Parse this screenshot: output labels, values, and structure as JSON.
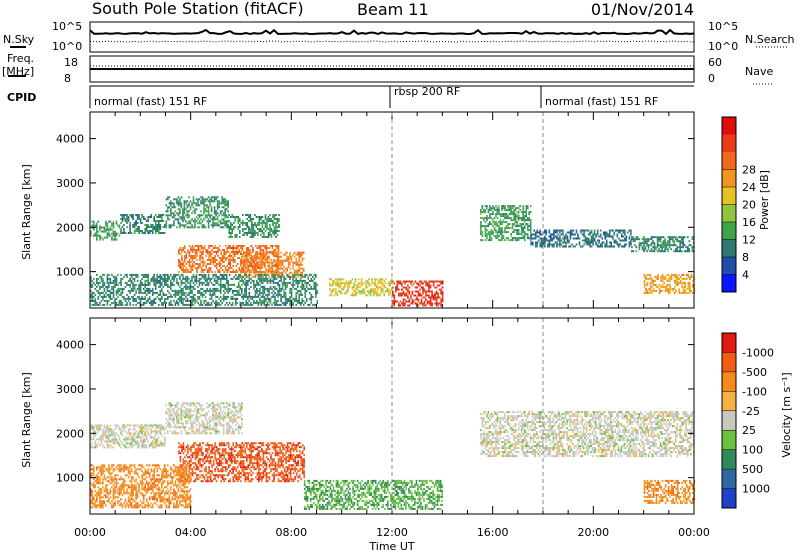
{
  "header": {
    "station": "South Pole Station (fitACF)",
    "beam": "Beam 11",
    "date": "01/Nov/2014"
  },
  "sky_panel": {
    "left_label": "N.Sky",
    "right_label": "N.Search",
    "ticks_left": [
      "10^5",
      "10^0"
    ],
    "ticks_right": [
      "10^5",
      "10^0"
    ]
  },
  "freq_panel": {
    "left_label": "Freq.",
    "left_unit": "[MHz]",
    "right_label": "Nave",
    "ticks_left": [
      "18",
      "8"
    ],
    "ticks_right": [
      "60",
      "0"
    ]
  },
  "cpid": {
    "label": "CPID",
    "segments": [
      {
        "name": "normal (fast) 151 RF",
        "start_hour": 0,
        "end_hour": 12
      },
      {
        "name": "rbsp 200 RF",
        "start_hour": 12,
        "end_hour": 18
      },
      {
        "name": "normal (fast) 151 RF",
        "start_hour": 18,
        "end_hour": 24
      }
    ]
  },
  "chart_data": [
    {
      "type": "heatmap",
      "title": "",
      "xlabel": "Time UT",
      "ylabel": "Slant Range [km]",
      "xlim": [
        0,
        24
      ],
      "ylim": [
        180,
        4600
      ],
      "x_ticks": [
        "00:00",
        "04:00",
        "08:00",
        "12:00",
        "16:00",
        "20:00",
        "00:00"
      ],
      "y_ticks": [
        "1000",
        "2000",
        "3000",
        "4000"
      ],
      "colorbar_label": "Power [dB]",
      "colorbar_ticks": [
        "4",
        "8",
        "12",
        "16",
        "20",
        "24",
        "28"
      ],
      "colorbar_range": [
        0,
        30
      ],
      "colors": [
        "#0a14ff",
        "#1f4fa8",
        "#2e7a6e",
        "#3ea64a",
        "#90c63c",
        "#e6c224",
        "#f39621",
        "#f2681c",
        "#ec3b17",
        "#e00d0d"
      ],
      "echo_bands": [
        {
          "start_hour": 0.0,
          "end_hour": 1.2,
          "range_km": [
            1700,
            2150
          ],
          "value": 10
        },
        {
          "start_hour": 1.2,
          "end_hour": 3.0,
          "range_km": [
            1850,
            2300
          ],
          "value": 8
        },
        {
          "start_hour": 3.0,
          "end_hour": 5.5,
          "range_km": [
            2000,
            2700
          ],
          "value": 9
        },
        {
          "start_hour": 5.5,
          "end_hour": 7.5,
          "range_km": [
            1800,
            2300
          ],
          "value": 9
        },
        {
          "start_hour": 3.5,
          "end_hour": 7.5,
          "range_km": [
            1000,
            1600
          ],
          "value": 22
        },
        {
          "start_hour": 6.0,
          "end_hour": 8.5,
          "range_km": [
            900,
            1450
          ],
          "value": 21
        },
        {
          "start_hour": 0.0,
          "end_hour": 9.0,
          "range_km": [
            250,
            950
          ],
          "value": 8
        },
        {
          "start_hour": 9.5,
          "end_hour": 12.0,
          "range_km": [
            450,
            850
          ],
          "value": 16
        },
        {
          "start_hour": 12.0,
          "end_hour": 14.0,
          "range_km": [
            250,
            800
          ],
          "value": 26
        },
        {
          "start_hour": 15.5,
          "end_hour": 17.5,
          "range_km": [
            1700,
            2500
          ],
          "value": 10
        },
        {
          "start_hour": 17.5,
          "end_hour": 21.5,
          "range_km": [
            1550,
            1950
          ],
          "value": 7
        },
        {
          "start_hour": 21.5,
          "end_hour": 24.0,
          "range_km": [
            1450,
            1800
          ],
          "value": 8
        },
        {
          "start_hour": 22.0,
          "end_hour": 24.0,
          "range_km": [
            500,
            950
          ],
          "value": 19
        }
      ]
    },
    {
      "type": "heatmap",
      "title": "",
      "xlabel": "Time UT",
      "ylabel": "Slant Range [km]",
      "xlim": [
        0,
        24
      ],
      "ylim": [
        180,
        4600
      ],
      "x_ticks": [
        "00:00",
        "04:00",
        "08:00",
        "12:00",
        "16:00",
        "20:00",
        "00:00"
      ],
      "y_ticks": [
        "1000",
        "2000",
        "3000",
        "4000"
      ],
      "colorbar_label": "Velocity [m s⁻¹]",
      "colorbar_ticks": [
        "1000",
        "500",
        "100",
        "25",
        "-25",
        "-100",
        "-500",
        "-1000"
      ],
      "colorbar_range": [
        1000,
        -1000
      ],
      "colors": [
        "#2040c8",
        "#2e6aa0",
        "#2e8a5c",
        "#6cc040",
        "#c8c8c0",
        "#f5b240",
        "#f58a18",
        "#f25c14",
        "#e21a10"
      ],
      "echo_bands": [
        {
          "start_hour": 0.0,
          "end_hour": 3.0,
          "range_km": [
            1700,
            2200
          ],
          "value": 0
        },
        {
          "start_hour": 3.0,
          "end_hour": 6.0,
          "range_km": [
            2000,
            2700
          ],
          "value": 0
        },
        {
          "start_hour": 3.5,
          "end_hour": 8.5,
          "range_km": [
            900,
            1800
          ],
          "value": -700
        },
        {
          "start_hour": 0.0,
          "end_hour": 4.0,
          "range_km": [
            350,
            1300
          ],
          "value": -450
        },
        {
          "start_hour": 8.5,
          "end_hour": 14.0,
          "range_km": [
            300,
            950
          ],
          "value": 300
        },
        {
          "start_hour": 15.5,
          "end_hour": 24.0,
          "range_km": [
            1500,
            2500
          ],
          "value": 0
        },
        {
          "start_hour": 22.0,
          "end_hour": 24.0,
          "range_km": [
            450,
            950
          ],
          "value": -450
        }
      ]
    }
  ]
}
